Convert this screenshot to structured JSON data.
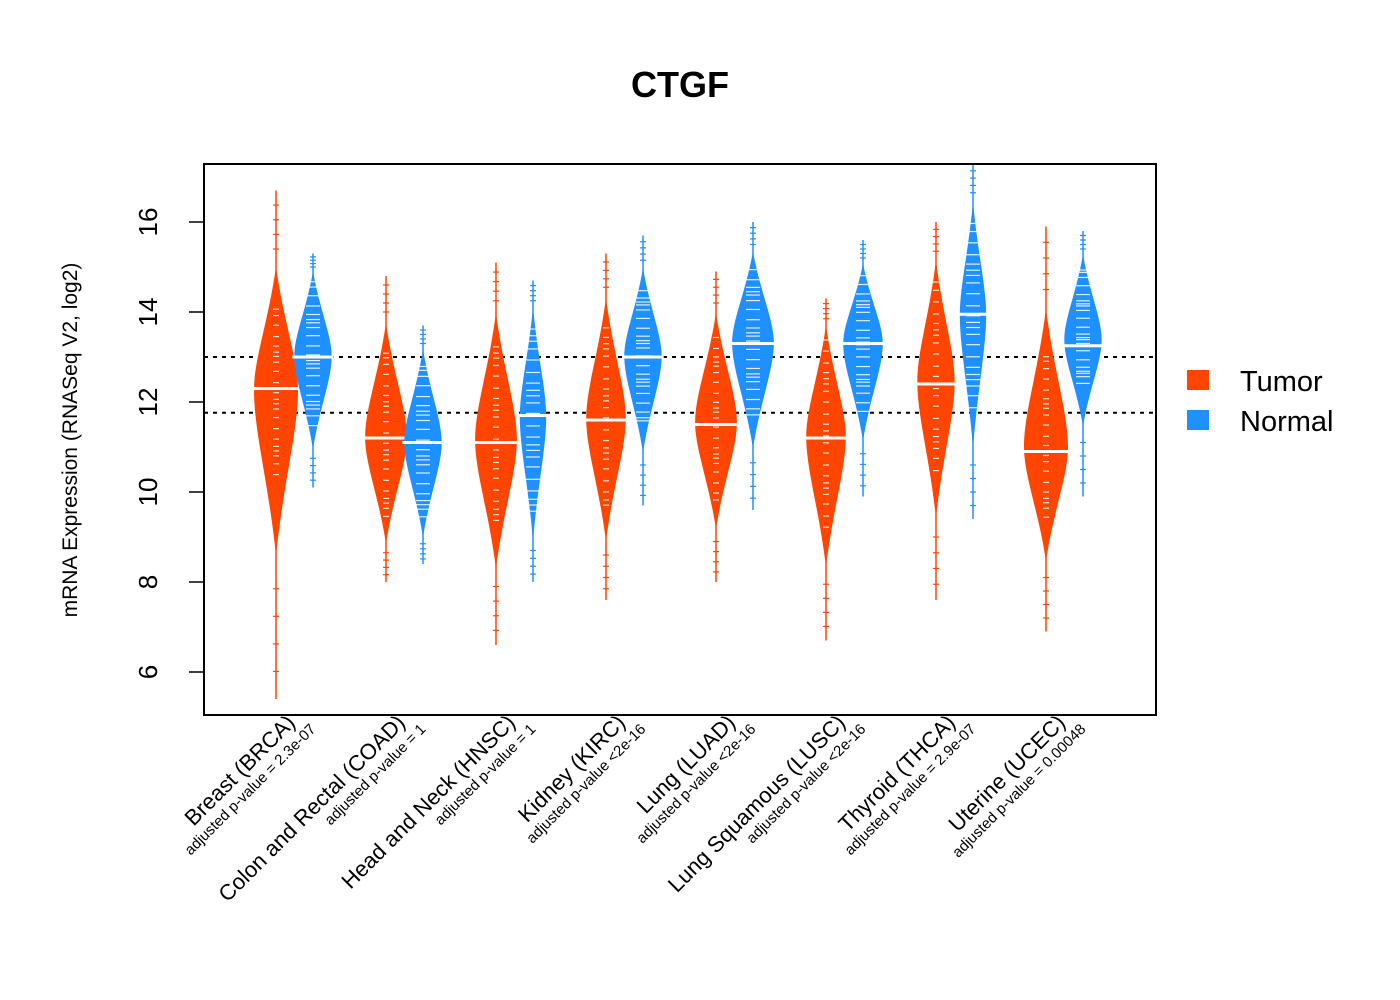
{
  "chart_data": {
    "type": "violin",
    "title": "CTGF",
    "xlabel": "",
    "ylabel": "mRNA Expression (RNASeq V2, log2)",
    "ylim": [
      5.1,
      17.3
    ],
    "yticks": [
      6,
      8,
      10,
      12,
      14,
      16
    ],
    "grid": false,
    "reference_lines": [
      13.0,
      11.76
    ],
    "legend": {
      "placement": "right",
      "entries": [
        {
          "name": "Tumor",
          "color": "#FF4500"
        },
        {
          "name": "Normal",
          "color": "#1E90FF"
        }
      ]
    },
    "categories": [
      {
        "label": "Breast (BRCA)",
        "pvalue_label": "adjusted p-value = 2.3e-07"
      },
      {
        "label": "Colon and Rectal (COAD)",
        "pvalue_label": "adjusted p-value = 1"
      },
      {
        "label": "Head and Neck (HNSC)",
        "pvalue_label": "adjusted p-value = 1"
      },
      {
        "label": "Kidney (KIRC)",
        "pvalue_label": "adjusted p-value <2e-16"
      },
      {
        "label": "Lung (LUAD)",
        "pvalue_label": "adjusted p-value <2e-16"
      },
      {
        "label": "Lung Squamous (LUSC)",
        "pvalue_label": "adjusted p-value <2e-16"
      },
      {
        "label": "Thyroid (THCA)",
        "pvalue_label": "adjusted p-value = 2.9e-07"
      },
      {
        "label": "Uterine (UCEC)",
        "pvalue_label": "adjusted p-value = 0.00048"
      }
    ],
    "series": [
      {
        "name": "Tumor",
        "color": "#FF4500",
        "groups": [
          {
            "min": 5.4,
            "q_low": 10.3,
            "median": 12.3,
            "q_high": 14.1,
            "max": 16.7,
            "width": 1.0
          },
          {
            "min": 8.0,
            "q_low": 9.3,
            "median": 11.2,
            "q_high": 13.2,
            "max": 14.8,
            "width": 0.95
          },
          {
            "min": 6.6,
            "q_low": 9.2,
            "median": 11.1,
            "q_high": 13.4,
            "max": 15.1,
            "width": 0.95
          },
          {
            "min": 7.6,
            "q_low": 9.6,
            "median": 11.6,
            "q_high": 13.8,
            "max": 15.3,
            "width": 0.9
          },
          {
            "min": 8.0,
            "q_low": 9.8,
            "median": 11.5,
            "q_high": 13.5,
            "max": 14.9,
            "width": 0.95
          },
          {
            "min": 6.7,
            "q_low": 9.2,
            "median": 11.2,
            "q_high": 13.4,
            "max": 14.3,
            "width": 0.9
          },
          {
            "min": 7.6,
            "q_low": 10.4,
            "median": 12.4,
            "q_high": 14.7,
            "max": 16.0,
            "width": 0.85
          },
          {
            "min": 6.9,
            "q_low": 9.3,
            "median": 10.9,
            "q_high": 13.1,
            "max": 15.9,
            "width": 1.0
          }
        ]
      },
      {
        "name": "Normal",
        "color": "#1E90FF",
        "groups": [
          {
            "min": 10.1,
            "q_low": 11.4,
            "median": 13.0,
            "q_high": 14.7,
            "max": 15.3,
            "width": 0.85
          },
          {
            "min": 8.4,
            "q_low": 9.3,
            "median": 11.1,
            "q_high": 12.9,
            "max": 13.7,
            "width": 0.85
          },
          {
            "min": 8.0,
            "q_low": 9.4,
            "median": 11.7,
            "q_high": 13.8,
            "max": 14.7,
            "width": 0.6
          },
          {
            "min": 9.7,
            "q_low": 11.5,
            "median": 13.0,
            "q_high": 14.6,
            "max": 15.7,
            "width": 0.85
          },
          {
            "min": 9.6,
            "q_low": 11.7,
            "median": 13.3,
            "q_high": 15.0,
            "max": 16.0,
            "width": 0.95
          },
          {
            "min": 9.9,
            "q_low": 11.8,
            "median": 13.3,
            "q_high": 14.8,
            "max": 15.6,
            "width": 0.9
          },
          {
            "min": 9.4,
            "q_low": 11.8,
            "median": 13.95,
            "q_high": 16.0,
            "max": 17.3,
            "width": 0.6
          },
          {
            "min": 9.9,
            "q_low": 12.3,
            "median": 13.25,
            "q_high": 15.0,
            "max": 15.8,
            "width": 0.85
          }
        ]
      }
    ]
  }
}
